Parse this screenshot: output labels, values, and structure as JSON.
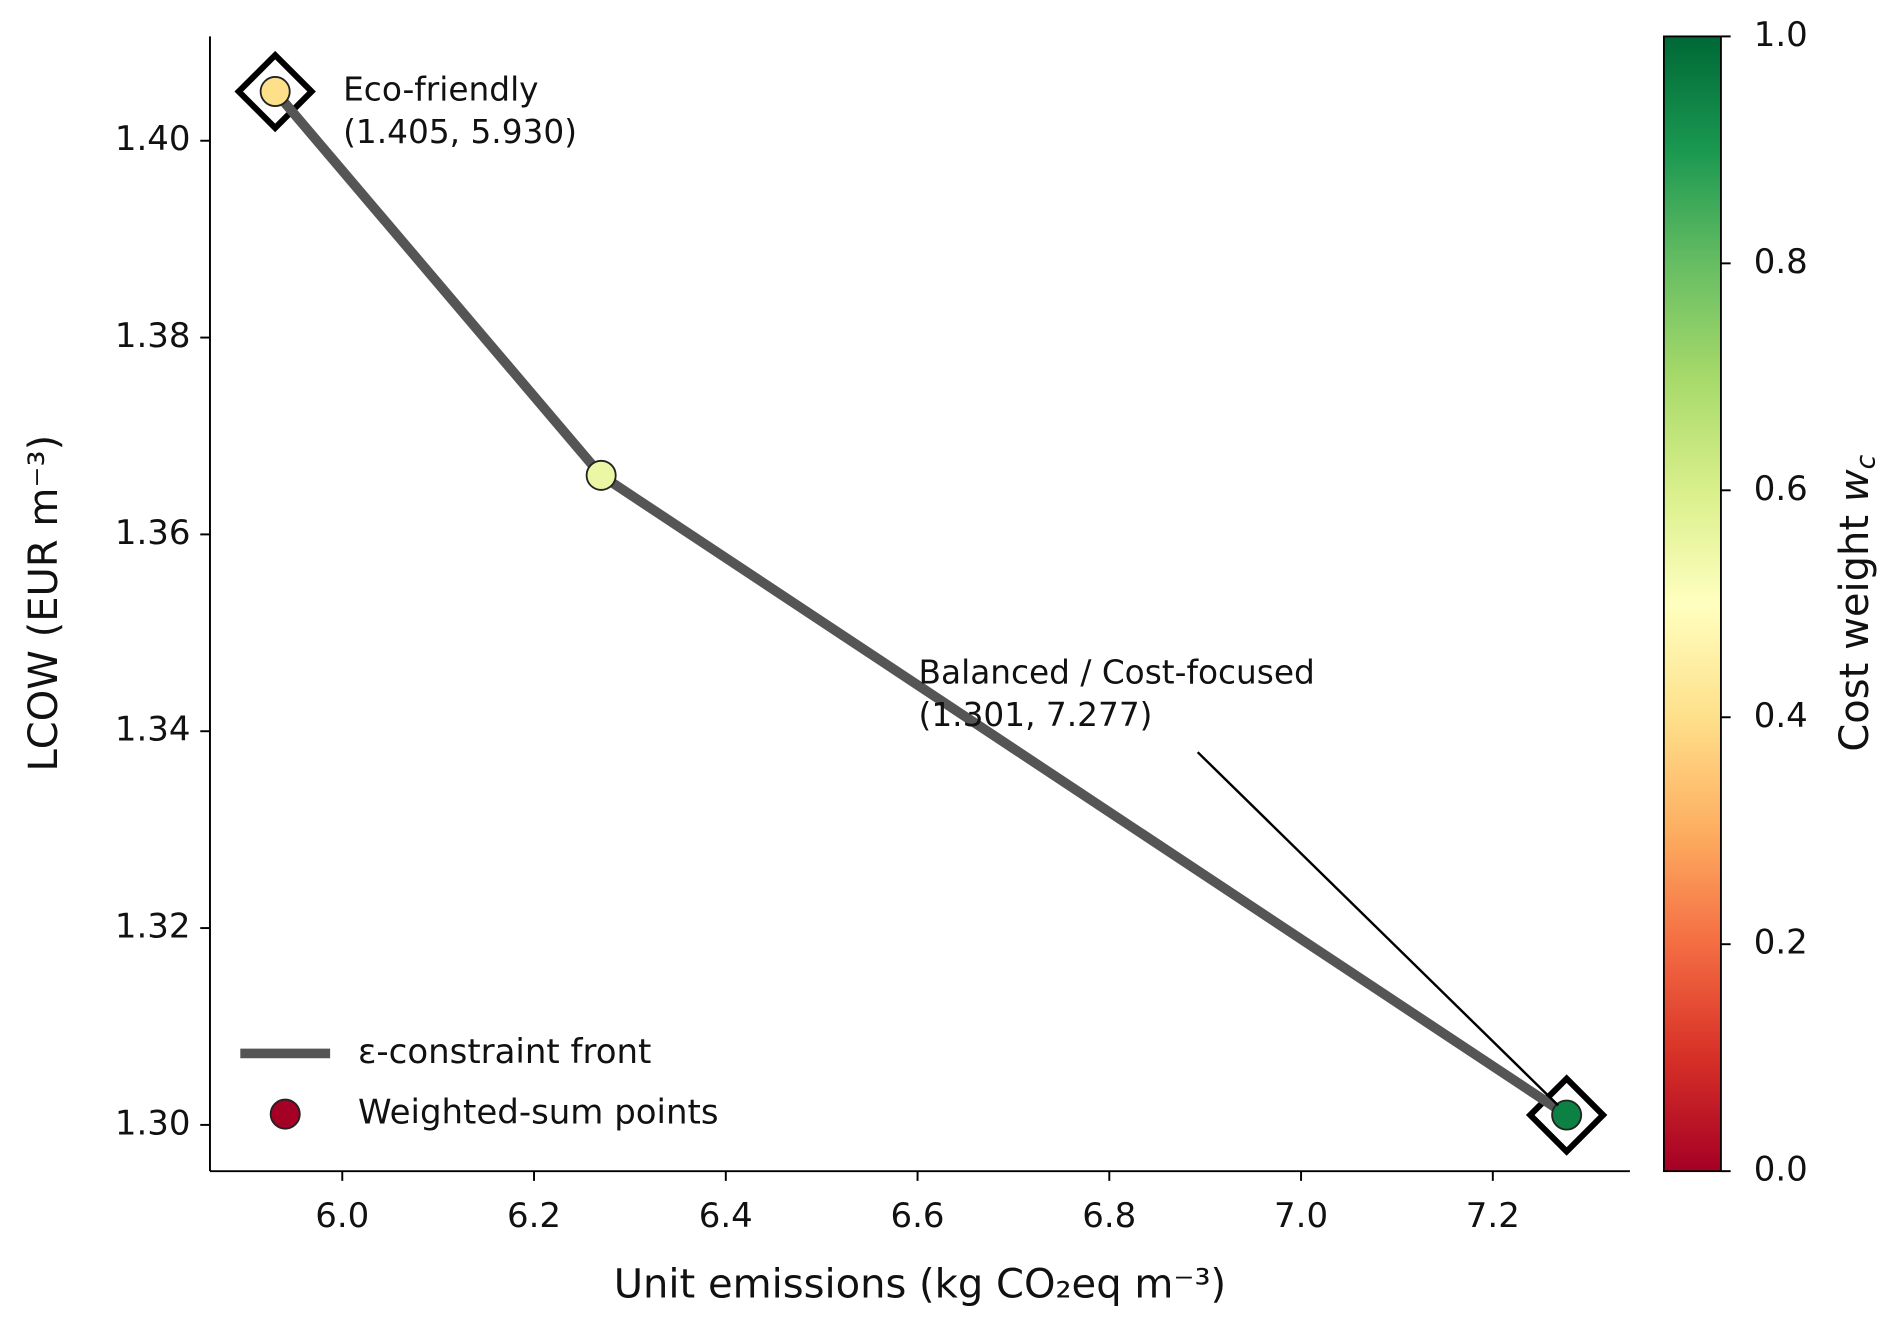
{
  "chart_data": {
    "type": "scatter",
    "xlabel": "Unit emissions (kg CO₂eq m⁻³)",
    "ylabel": "LCOW (EUR m⁻³)",
    "xlim": [
      5.862,
      7.343
    ],
    "ylim": [
      1.2953,
      1.4106
    ],
    "xticks": [
      {
        "value": 6.0,
        "label": "6.0"
      },
      {
        "value": 6.2,
        "label": "6.2"
      },
      {
        "value": 6.4,
        "label": "6.4"
      },
      {
        "value": 6.6,
        "label": "6.6"
      },
      {
        "value": 6.8,
        "label": "6.8"
      },
      {
        "value": 7.0,
        "label": "7.0"
      },
      {
        "value": 7.2,
        "label": "7.2"
      }
    ],
    "yticks": [
      {
        "value": 1.3,
        "label": "1.30"
      },
      {
        "value": 1.32,
        "label": "1.32"
      },
      {
        "value": 1.34,
        "label": "1.34"
      },
      {
        "value": 1.36,
        "label": "1.36"
      },
      {
        "value": 1.38,
        "label": "1.38"
      },
      {
        "value": 1.4,
        "label": "1.40"
      }
    ],
    "series": [
      {
        "name": "ε-constraint front",
        "kind": "line",
        "color": "#555555",
        "x": [
          5.93,
          6.27,
          7.277
        ],
        "values": [
          1.405,
          1.366,
          1.301
        ]
      },
      {
        "name": "Weighted-sum points",
        "kind": "scatter",
        "x": [
          5.93,
          6.27,
          7.277
        ],
        "values": [
          1.405,
          1.366,
          1.301
        ],
        "weights": [
          0.4,
          0.55,
          0.95
        ]
      }
    ],
    "colormap": "RdYlGn",
    "clim": [
      0,
      1
    ],
    "cticks": [
      {
        "value": 0,
        "label": "0.0"
      },
      {
        "value": 0.2,
        "label": "0.2"
      },
      {
        "value": 0.4,
        "label": "0.4"
      },
      {
        "value": 0.6,
        "label": "0.6"
      },
      {
        "value": 0.8,
        "label": "0.8"
      },
      {
        "value": 1,
        "label": "1.0"
      }
    ],
    "colorbar_label": {
      "text": "Cost weight ",
      "symbol": "w",
      "subscript": "c"
    },
    "annotations": [
      {
        "lines": [
          "Eco-friendly",
          "(1.405, 5.930)"
        ],
        "x": 5.93,
        "y": 1.405,
        "arrow": false
      },
      {
        "lines": [
          "Balanced / Cost-focused",
          "(1.301, 7.277)"
        ],
        "x": 7.277,
        "y": 1.301,
        "arrow": true
      }
    ],
    "legend": "lower left"
  }
}
